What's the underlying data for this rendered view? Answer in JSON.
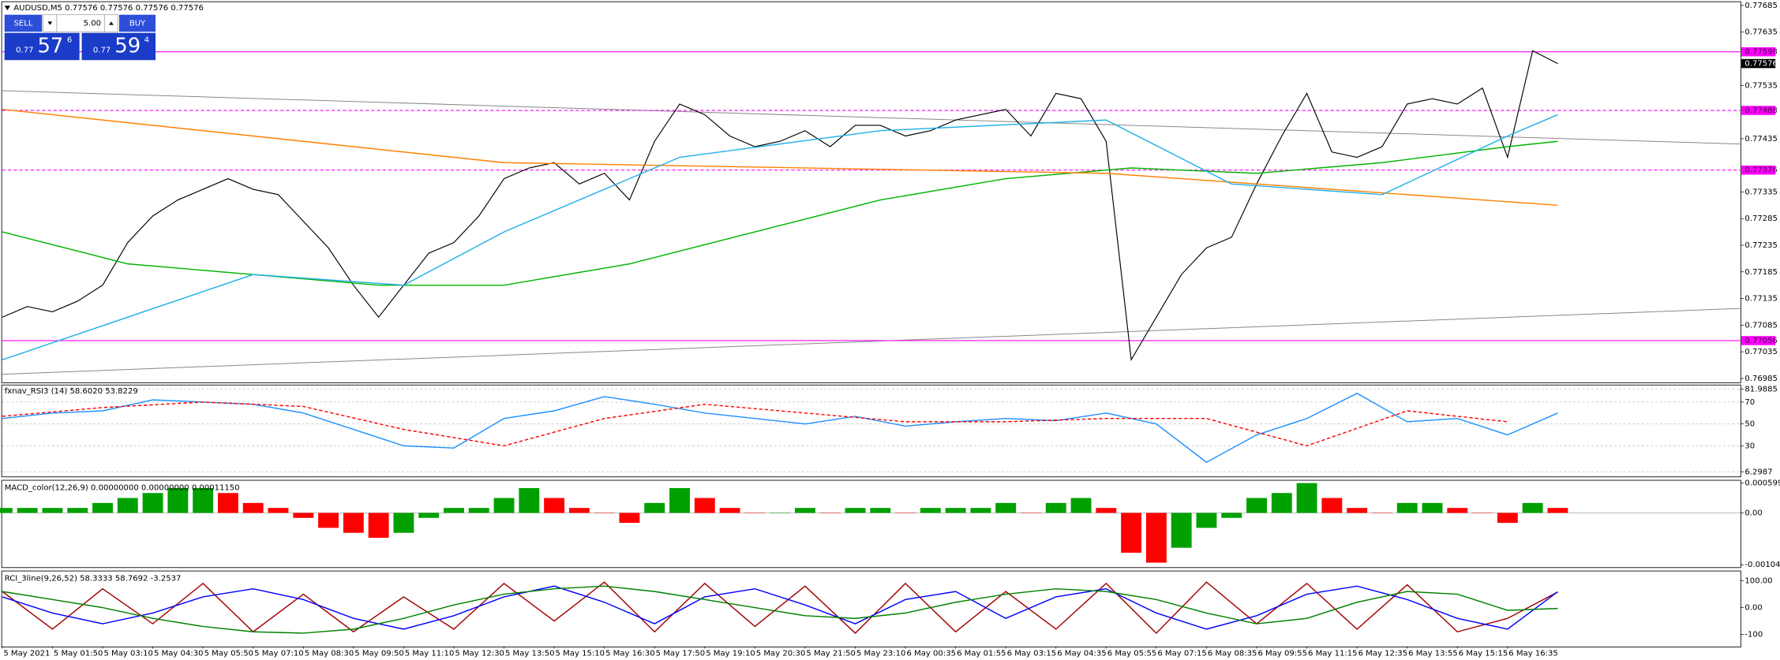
{
  "trade_panel": {
    "sell_label": "SELL",
    "buy_label": "BUY",
    "lot": "5.00",
    "sell_prefix": "0.77",
    "sell_big": "57",
    "sell_small": "6",
    "buy_prefix": "0.77",
    "buy_big": "59",
    "buy_small": "4"
  },
  "time_axis": {
    "labels": [
      "5 May 2021",
      "5 May 01:50",
      "5 May 03:10",
      "5 May 04:30",
      "5 May 05:50",
      "5 May 07:10",
      "5 May 08:30",
      "5 May 09:50",
      "5 May 11:10",
      "5 May 12:30",
      "5 May 13:50",
      "5 May 15:10",
      "5 May 16:30",
      "5 May 17:50",
      "5 May 19:10",
      "5 May 20:30",
      "5 May 21:50",
      "5 May 23:10",
      "6 May 00:35",
      "6 May 01:55",
      "6 May 03:15",
      "6 May 04:35",
      "6 May 05:55",
      "6 May 07:15",
      "6 May 08:35",
      "6 May 09:55",
      "6 May 11:15",
      "6 May 12:35",
      "6 May 13:55",
      "6 May 15:15",
      "6 May 16:35"
    ]
  },
  "chart_data": [
    {
      "type": "line",
      "title": "AUDUSD,M5  0.77576 0.77576 0.77576 0.77576",
      "ylim": [
        0.76978,
        0.77691
      ],
      "yticks": [
        0.77685,
        0.77635,
        0.77535,
        0.77435,
        0.77335,
        0.77285,
        0.77235,
        0.77185,
        0.77135,
        0.77085,
        0.77035,
        0.76985
      ],
      "series": [
        {
          "color": "#000000",
          "values": [
            0.771,
            0.7712,
            0.7711,
            0.7713,
            0.7716,
            0.7724,
            0.7729,
            0.7732,
            0.7734,
            0.7736,
            0.7734,
            0.7733,
            0.7728,
            0.7723,
            0.7716,
            0.771,
            0.7716,
            0.7722,
            0.7724,
            0.7729,
            0.7736,
            0.7738,
            0.7739,
            0.7735,
            0.7737,
            0.7732,
            0.7743,
            0.775,
            0.7748,
            0.7744,
            0.7742,
            0.7743,
            0.7745,
            0.7742,
            0.7746,
            0.7746,
            0.7744,
            0.7745,
            0.7747,
            0.7748,
            0.7749,
            0.7744,
            0.7752,
            0.7751,
            0.7743,
            0.7702,
            0.771,
            0.7718,
            0.7723,
            0.7725,
            0.7735,
            0.7744,
            0.7752,
            0.7741,
            0.774,
            0.7742,
            0.775,
            0.7751,
            0.775,
            0.7753,
            0.774,
            0.776,
            0.77576
          ]
        },
        {
          "color": "#00b400",
          "x": [
            0,
            5,
            10,
            15,
            20,
            25,
            30,
            35,
            40,
            45,
            50,
            55,
            60,
            62
          ],
          "values": [
            0.7726,
            0.772,
            0.7718,
            0.7716,
            0.7716,
            0.772,
            0.7726,
            0.7732,
            0.7736,
            0.7738,
            0.7737,
            0.7739,
            0.7742,
            0.7743
          ]
        },
        {
          "color": "#ff8000",
          "x": [
            0,
            20,
            44,
            62
          ],
          "values": [
            0.7749,
            0.7739,
            0.7737,
            0.7731
          ]
        },
        {
          "color": "#20b0e8",
          "x": [
            0,
            10,
            16,
            20,
            27,
            35,
            44,
            49,
            55,
            60,
            62
          ],
          "values": [
            0.7702,
            0.7718,
            0.7716,
            0.7726,
            0.774,
            0.7745,
            0.7747,
            0.7735,
            0.7733,
            0.7744,
            0.7748
          ]
        }
      ],
      "price_lines": [
        {
          "value": 0.77598,
          "color": "#ff00ff",
          "dash": false
        },
        {
          "value": 0.77488,
          "color": "#ff00ff",
          "dash": true
        },
        {
          "value": 0.77376,
          "color": "#ff00ff",
          "dash": true
        },
        {
          "value": 0.77056,
          "color": "#ff00ff",
          "dash": false
        }
      ],
      "current_price": 0.77576
    },
    {
      "type": "line",
      "title": "fxnav_RSI3 (14) 58.6020 53.8229",
      "ylim": [
        6.2987,
        81.9885
      ],
      "yticks": [
        81.9885,
        70,
        50,
        30,
        6.2987
      ],
      "grid": true,
      "series": [
        {
          "color": "#1e90ff",
          "x": [
            0,
            2,
            4,
            6,
            8,
            10,
            12,
            14,
            16,
            18,
            20,
            22,
            24,
            26,
            28,
            30,
            32,
            34,
            36,
            38,
            40,
            42,
            44,
            46,
            48,
            50,
            52,
            54,
            56,
            58,
            60,
            62
          ],
          "values": [
            55,
            60,
            62,
            72,
            70,
            68,
            60,
            45,
            30,
            28,
            55,
            62,
            75,
            68,
            60,
            55,
            50,
            57,
            48,
            52,
            55,
            53,
            60,
            50,
            15,
            40,
            55,
            78,
            52,
            55,
            40,
            60
          ]
        },
        {
          "color": "#ff0000",
          "dash": true,
          "x": [
            0,
            4,
            8,
            12,
            16,
            20,
            24,
            28,
            32,
            36,
            40,
            44,
            48,
            52,
            56,
            60
          ],
          "values": [
            57,
            65,
            70,
            66,
            45,
            30,
            55,
            68,
            60,
            52,
            52,
            55,
            55,
            30,
            62,
            52
          ]
        }
      ]
    },
    {
      "type": "bar",
      "title": "MACD_color(12,26,9) 0.00000000 0.00000000 0.00011150",
      "ylim": [
        -0.001042,
        0.0005997
      ],
      "yticks": [
        0.0005997,
        {
          "value": 0,
          "label": "0.00"
        },
        -0.001042
      ],
      "up_color": "#00a000",
      "down_color": "#ff0000",
      "values": [
        0.0001,
        0.0001,
        0.0001,
        0.0001,
        0.0002,
        0.0003,
        0.0004,
        0.0005,
        0.0005,
        0.0004,
        0.0002,
        0.0001,
        -0.0001,
        -0.0003,
        -0.0004,
        -0.0005,
        -0.0004,
        -0.0001,
        0.0001,
        0.0001,
        0.0003,
        0.0005,
        0.0003,
        0.0001,
        0.0,
        -0.0002,
        0.0002,
        0.0005,
        0.0003,
        0.0001,
        0.0,
        0.0,
        0.0001,
        0.0,
        0.0001,
        0.0001,
        0.0,
        0.0001,
        0.0001,
        0.0001,
        0.0002,
        0.0,
        0.0002,
        0.0003,
        0.0001,
        -0.0008,
        -0.001,
        -0.0007,
        -0.0003,
        -0.0001,
        0.0003,
        0.0004,
        0.0006,
        0.0003,
        0.0001,
        0.0,
        0.0002,
        0.0002,
        0.0001,
        0.0,
        -0.0002,
        0.0002,
        0.0001
      ]
    },
    {
      "type": "line",
      "title": "RCI_3line(9,26,52) 58.3333 58.7692 -3.2537",
      "ylim": [
        -140,
        130
      ],
      "yticks": [
        {
          "value": 100,
          "label": "100.00"
        },
        {
          "value": 0,
          "label": "0.00"
        },
        -100
      ],
      "series": [
        {
          "color": "#a00000",
          "x": [
            0,
            2,
            4,
            6,
            8,
            10,
            12,
            14,
            16,
            18,
            20,
            22,
            24,
            26,
            28,
            30,
            32,
            34,
            36,
            38,
            40,
            42,
            44,
            46,
            48,
            50,
            52,
            54,
            56,
            58,
            60,
            62
          ],
          "values": [
            60,
            -80,
            70,
            -60,
            90,
            -90,
            50,
            -90,
            40,
            -80,
            90,
            -50,
            95,
            -90,
            90,
            -70,
            80,
            -95,
            90,
            -90,
            60,
            -80,
            90,
            -95,
            95,
            -60,
            90,
            -80,
            85,
            -90,
            -40,
            58
          ]
        },
        {
          "color": "#0000ff",
          "x": [
            0,
            2,
            4,
            6,
            8,
            10,
            12,
            14,
            16,
            18,
            20,
            22,
            24,
            26,
            28,
            30,
            32,
            34,
            36,
            38,
            40,
            42,
            44,
            46,
            48,
            50,
            52,
            54,
            56,
            58,
            60,
            62
          ],
          "values": [
            40,
            -20,
            -60,
            -20,
            40,
            70,
            30,
            -40,
            -80,
            -30,
            40,
            80,
            20,
            -60,
            40,
            70,
            10,
            -60,
            30,
            60,
            -40,
            40,
            70,
            -20,
            -80,
            -30,
            50,
            80,
            30,
            -40,
            -80,
            59
          ]
        },
        {
          "color": "#008000",
          "x": [
            0,
            2,
            4,
            6,
            8,
            10,
            12,
            14,
            16,
            18,
            20,
            22,
            24,
            26,
            28,
            30,
            32,
            34,
            36,
            38,
            40,
            42,
            44,
            46,
            48,
            50,
            52,
            54,
            56,
            58,
            60,
            62
          ],
          "values": [
            60,
            30,
            0,
            -40,
            -70,
            -90,
            -95,
            -80,
            -40,
            10,
            50,
            70,
            80,
            60,
            30,
            0,
            -30,
            -40,
            -20,
            20,
            50,
            70,
            60,
            30,
            -20,
            -60,
            -40,
            20,
            60,
            50,
            -10,
            -3
          ]
        }
      ]
    }
  ]
}
